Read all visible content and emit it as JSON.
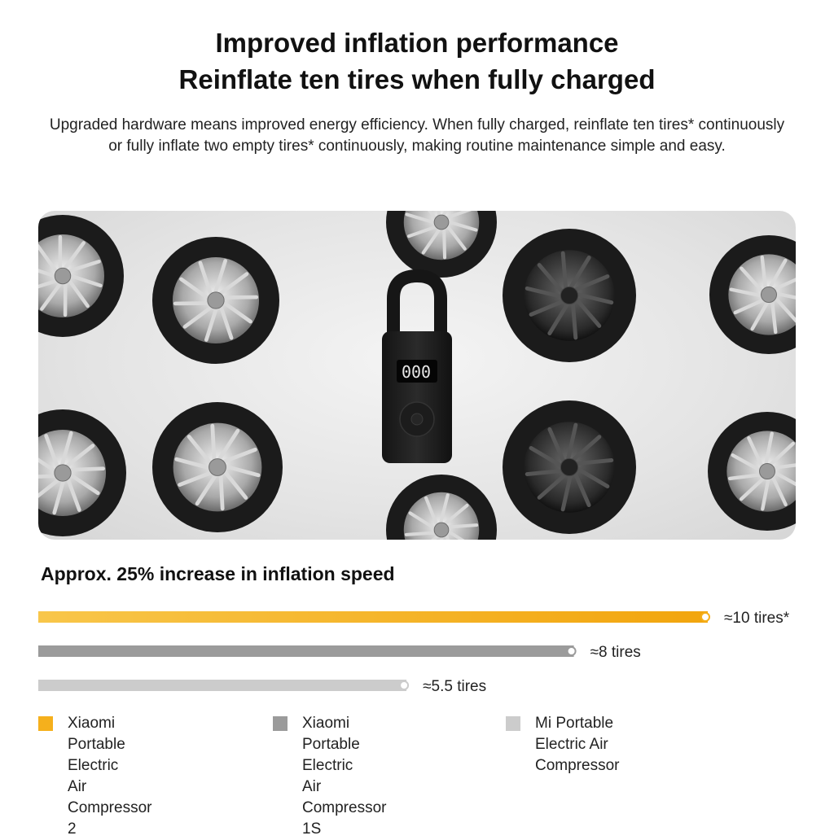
{
  "header": {
    "title_line1": "Improved inflation performance",
    "title_line2": "Reinflate ten tires when fully charged",
    "subtitle_line1": "Upgraded hardware means improved energy efficiency. When fully charged, reinflate ten tires* continuously",
    "subtitle_line2": "or fully inflate two empty tires* continuously, making routine maintenance simple and easy."
  },
  "hero": {
    "display_readout": "000",
    "icons": [
      "tire-icon",
      "air-compressor-icon"
    ]
  },
  "chart_data": {
    "type": "bar",
    "title": "Approx. 25% increase in inflation speed",
    "orientation": "horizontal",
    "xlim": [
      0,
      10
    ],
    "series": [
      {
        "name": "Xiaomi Portable Electric Air Compressor 2",
        "value": 10,
        "label": "≈10 tires*",
        "color": "#f5b01c"
      },
      {
        "name": "Xiaomi Portable Electric Air Compressor 1S",
        "value": 8,
        "label": "≈8 tires",
        "color": "#9b9b9b"
      },
      {
        "name": "Mi Portable Electric Air Compressor",
        "value": 5.5,
        "label": "≈5.5 tires",
        "color": "#cccccc"
      }
    ],
    "legend": {
      "placement": "bottom",
      "items": [
        {
          "line1": "Xiaomi Portable Electric",
          "line2": "Air Compressor 2",
          "color": "#f5b01c"
        },
        {
          "line1": "Xiaomi Portable Electric",
          "line2": "Air Compressor 1S",
          "color": "#9b9b9b"
        },
        {
          "line1": "Mi Portable Electric Air Compressor",
          "line2": "",
          "color": "#cccccc"
        }
      ]
    },
    "grid": false
  }
}
